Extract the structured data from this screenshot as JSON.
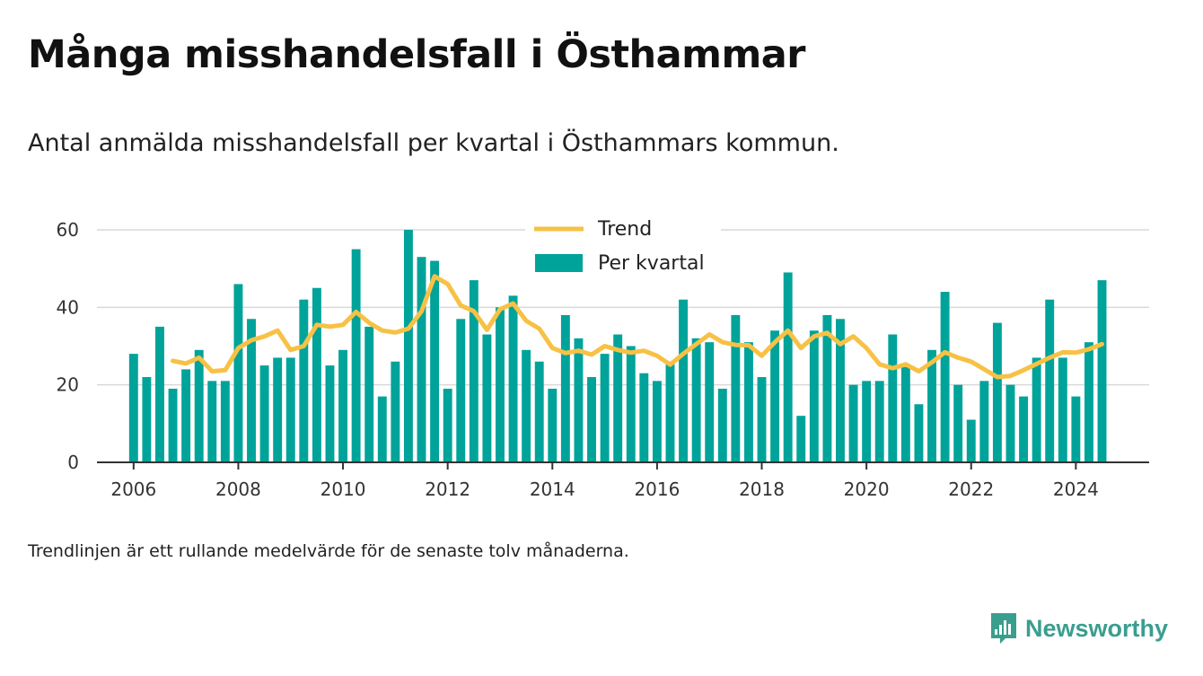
{
  "header": {
    "title": "Många misshandelsfall i Östhammar",
    "subtitle": "Antal anmälda misshandelsfall per kvartal i Östhammars kommun."
  },
  "footnote": "Trendlinjen är ett rullande medelvärde för de senaste tolv månaderna.",
  "brand": {
    "name": "Newsworthy",
    "icon": "newsworthy-logo-icon"
  },
  "colors": {
    "bars": "#00a39a",
    "trend": "#f7c145",
    "grid": "#d9d9d9",
    "axis": "#333333"
  },
  "chart_data": {
    "type": "bar",
    "grid": "horizontal",
    "legend_position": "top-center",
    "xlim": [
      2005.3,
      2025.4
    ],
    "ylim": [
      0,
      60
    ],
    "x_ticks": [
      2006,
      2008,
      2010,
      2012,
      2014,
      2016,
      2018,
      2020,
      2022,
      2024
    ],
    "y_ticks": [
      0,
      20,
      40,
      60
    ],
    "quarters": [
      "2006-Q1",
      "2006-Q2",
      "2006-Q3",
      "2006-Q4",
      "2007-Q1",
      "2007-Q2",
      "2007-Q3",
      "2007-Q4",
      "2008-Q1",
      "2008-Q2",
      "2008-Q3",
      "2008-Q4",
      "2009-Q1",
      "2009-Q2",
      "2009-Q3",
      "2009-Q4",
      "2010-Q1",
      "2010-Q2",
      "2010-Q3",
      "2010-Q4",
      "2011-Q1",
      "2011-Q2",
      "2011-Q3",
      "2011-Q4",
      "2012-Q1",
      "2012-Q2",
      "2012-Q3",
      "2012-Q4",
      "2013-Q1",
      "2013-Q2",
      "2013-Q3",
      "2013-Q4",
      "2014-Q1",
      "2014-Q2",
      "2014-Q3",
      "2014-Q4",
      "2015-Q1",
      "2015-Q2",
      "2015-Q3",
      "2015-Q4",
      "2016-Q1",
      "2016-Q2",
      "2016-Q3",
      "2016-Q4",
      "2017-Q1",
      "2017-Q2",
      "2017-Q3",
      "2017-Q4",
      "2018-Q1",
      "2018-Q2",
      "2018-Q3",
      "2018-Q4",
      "2019-Q1",
      "2019-Q2",
      "2019-Q3",
      "2019-Q4",
      "2020-Q1",
      "2020-Q2",
      "2020-Q3",
      "2020-Q4",
      "2021-Q1",
      "2021-Q2",
      "2021-Q3",
      "2021-Q4",
      "2022-Q1",
      "2022-Q2",
      "2022-Q3",
      "2022-Q4",
      "2023-Q1",
      "2023-Q2",
      "2023-Q3",
      "2023-Q4",
      "2024-Q1",
      "2024-Q2",
      "2024-Q3"
    ],
    "series": [
      {
        "name": "Per kvartal",
        "kind": "bar",
        "values": [
          28,
          22,
          35,
          19,
          24,
          29,
          21,
          21,
          46,
          37,
          25,
          27,
          27,
          42,
          45,
          25,
          29,
          55,
          35,
          17,
          26,
          60,
          53,
          52,
          19,
          37,
          47,
          33,
          40,
          43,
          29,
          26,
          19,
          38,
          32,
          22,
          28,
          33,
          30,
          23,
          21,
          26,
          42,
          32,
          31,
          19,
          38,
          31,
          22,
          34,
          49,
          12,
          34,
          38,
          37,
          20,
          21,
          21,
          33,
          25,
          15,
          29,
          44,
          20,
          11,
          21,
          36,
          20,
          17,
          27,
          42,
          27,
          17,
          31,
          47
        ]
      },
      {
        "name": "Trend",
        "kind": "line",
        "values": [
          null,
          null,
          null,
          26.2,
          25.5,
          27,
          23.5,
          23.8,
          29.5,
          31.5,
          32.5,
          34,
          29,
          30,
          35.5,
          35,
          35.5,
          38.8,
          36,
          34,
          33.5,
          34.5,
          39,
          48,
          46,
          40.5,
          39,
          34.2,
          39.5,
          41,
          36.5,
          34.5,
          29.5,
          28.2,
          28.8,
          27.8,
          30,
          29,
          28.3,
          28.8,
          27.5,
          25.2,
          28,
          30.5,
          33,
          31,
          30.3,
          30.2,
          27.5,
          31,
          34,
          29.5,
          32.5,
          33.4,
          30.5,
          32.5,
          29.5,
          25.3,
          24.3,
          25.3,
          23.5,
          25.8,
          28.4,
          27,
          26,
          24,
          22,
          22.3,
          23.8,
          25.4,
          27,
          28.4,
          28.3,
          29.2,
          30.5
        ]
      }
    ]
  }
}
